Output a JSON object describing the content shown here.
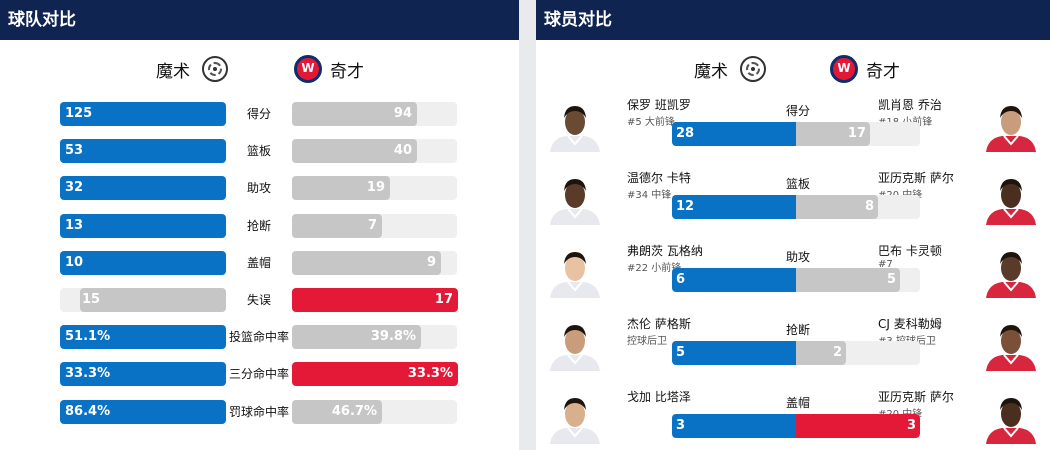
{
  "team_comparison": {
    "title": "球队对比",
    "home": {
      "name": "魔术",
      "logo": "magic-logo-icon"
    },
    "away": {
      "name": "奇才",
      "logo": "wizards-logo-icon"
    },
    "rows": [
      {
        "label": "得分",
        "home": "125",
        "away": "94",
        "home_frac": 1.0,
        "away_frac": 0.75,
        "leader": "home"
      },
      {
        "label": "篮板",
        "home": "53",
        "away": "40",
        "home_frac": 1.0,
        "away_frac": 0.75,
        "leader": "home"
      },
      {
        "label": "助攻",
        "home": "32",
        "away": "19",
        "home_frac": 1.0,
        "away_frac": 0.59,
        "leader": "home"
      },
      {
        "label": "抢断",
        "home": "13",
        "away": "7",
        "home_frac": 1.0,
        "away_frac": 0.54,
        "leader": "home"
      },
      {
        "label": "盖帽",
        "home": "10",
        "away": "9",
        "home_frac": 1.0,
        "away_frac": 0.9,
        "leader": "home"
      },
      {
        "label": "失误",
        "home": "15",
        "away": "17",
        "home_frac": 0.88,
        "away_frac": 1.0,
        "leader": "away"
      },
      {
        "label": "投篮命中率",
        "home": "51.1%",
        "away": "39.8%",
        "home_frac": 1.0,
        "away_frac": 0.78,
        "leader": "home"
      },
      {
        "label": "三分命中率",
        "home": "33.3%",
        "away": "33.3%",
        "home_frac": 1.0,
        "away_frac": 1.0,
        "leader": "both"
      },
      {
        "label": "罚球命中率",
        "home": "86.4%",
        "away": "46.7%",
        "home_frac": 1.0,
        "away_frac": 0.54,
        "leader": "home"
      }
    ]
  },
  "player_comparison": {
    "title": "球员对比",
    "home": {
      "name": "魔术",
      "logo": "magic-logo-icon"
    },
    "away": {
      "name": "奇才",
      "logo": "wizards-logo-icon"
    },
    "rows": [
      {
        "label": "得分",
        "home_player": "保罗 班凯罗",
        "home_info": "#5 大前锋",
        "away_player": "凯肖恩 乔治",
        "away_info": "#18 小前锋",
        "home_value": "28",
        "away_value": "17",
        "home_frac": 0.5,
        "away_frac": 0.3,
        "leader": "home"
      },
      {
        "label": "篮板",
        "home_player": "温德尔 卡特",
        "home_info": "#34 中锋",
        "away_player": "亚历克斯 萨尔",
        "away_info": "#20 中锋",
        "home_value": "12",
        "away_value": "8",
        "home_frac": 0.5,
        "away_frac": 0.33,
        "leader": "home"
      },
      {
        "label": "助攻",
        "home_player": "弗朗茨 瓦格纳",
        "home_info": "#22 小前锋",
        "away_player": "巴布 卡灵顿",
        "away_info": "#7",
        "home_value": "6",
        "away_value": "5",
        "home_frac": 0.5,
        "away_frac": 0.42,
        "leader": "home"
      },
      {
        "label": "抢断",
        "home_player": "杰伦 萨格斯",
        "home_info": "控球后卫",
        "away_player": "CJ 麦科勒姆",
        "away_info": "#3 控球后卫",
        "home_value": "5",
        "away_value": "2",
        "home_frac": 0.5,
        "away_frac": 0.2,
        "leader": "home"
      },
      {
        "label": "盖帽",
        "home_player": "戈加 比塔泽",
        "home_info": "",
        "away_player": "亚历克斯 萨尔",
        "away_info": "#20 中锋",
        "home_value": "3",
        "away_value": "3",
        "home_frac": 0.5,
        "away_frac": 0.5,
        "leader": "both"
      }
    ]
  },
  "colors": {
    "home": "#0a72c4",
    "away_lead": "#e31937",
    "trail": "#c6c6c6",
    "track": "#efefef",
    "header": "#0f2451"
  }
}
